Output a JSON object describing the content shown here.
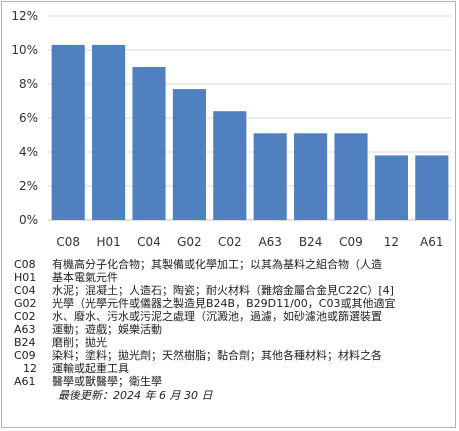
{
  "chart_data": {
    "type": "bar",
    "categories": [
      "C08",
      "H01",
      "C04",
      "G02",
      "C02",
      "A63",
      "B24",
      "C09",
      "12",
      "A61"
    ],
    "values": [
      10.3,
      10.3,
      9.0,
      7.7,
      6.4,
      5.1,
      5.1,
      5.1,
      3.8,
      3.8
    ],
    "ylim": [
      0,
      12
    ],
    "yticks": [
      0,
      2,
      4,
      6,
      8,
      10,
      12
    ],
    "ytick_labels": [
      "0%",
      "2%",
      "4%",
      "6%",
      "8%",
      "10%",
      "12%"
    ],
    "grid": true,
    "bar_color": "#5080c0"
  },
  "legend": [
    {
      "code": "C08",
      "desc": "有機高分子化合物；其製備或化學加工；以其為基料之組合物（人造"
    },
    {
      "code": "H01",
      "desc": "基本電氣元件"
    },
    {
      "code": "C04",
      "desc": "水泥；混凝土；人造石；陶瓷；耐火材料（難熔金屬合金見C22C）[4]"
    },
    {
      "code": "G02",
      "desc": "光學（光學元件或儀器之製造見B24B，B29D11/00，C03或其他適宜"
    },
    {
      "code": "C02",
      "desc": "水、廢水、污水或污泥之處理（沉澱池，過濾，如砂濾池或篩選裝置"
    },
    {
      "code": "A63",
      "desc": "運動；遊戲；娛樂活動"
    },
    {
      "code": "B24",
      "desc": "磨削；拋光"
    },
    {
      "code": "C09",
      "desc": "染料；塗料；拋光劑；天然樹脂；黏合劑；其他各種材料；材料之各"
    },
    {
      "code": "12",
      "desc": "運輸或起重工具"
    },
    {
      "code": "A61",
      "desc": "醫學或獸醫學；衛生學"
    }
  ],
  "updated": "最後更新：2024 年 6 月 30 日"
}
